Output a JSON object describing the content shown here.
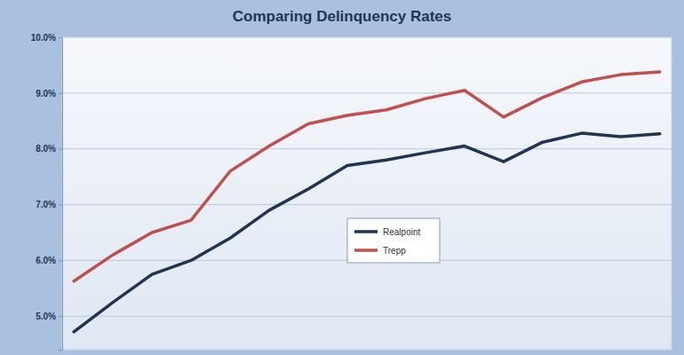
{
  "chart_data": {
    "type": "line",
    "title": "Comparing Delinquency Rates",
    "categories": [
      null,
      null,
      null,
      null,
      null,
      null,
      null,
      null,
      null,
      null,
      null,
      null,
      null,
      null,
      null,
      null
    ],
    "series": [
      {
        "name": "Realpoint",
        "color": "#1f3553",
        "values": [
          4.72,
          5.25,
          5.75,
          6.0,
          6.4,
          6.9,
          7.28,
          7.7,
          7.8,
          7.93,
          8.05,
          7.77,
          8.12,
          8.28,
          8.22,
          8.27
        ]
      },
      {
        "name": "Trepp",
        "color": "#c0504d",
        "values": [
          5.63,
          6.1,
          6.5,
          6.72,
          7.6,
          8.05,
          8.45,
          8.6,
          8.7,
          8.9,
          9.05,
          8.57,
          8.92,
          9.2,
          9.33,
          9.38
        ]
      }
    ],
    "ylim": [
      4.4,
      10.0
    ],
    "yticks": [
      {
        "value": 5.0,
        "label": "5.0%"
      },
      {
        "value": 6.0,
        "label": "6.0%"
      },
      {
        "value": 7.0,
        "label": "7.0%"
      },
      {
        "value": 8.0,
        "label": "8.0%"
      },
      {
        "value": 9.0,
        "label": "9.0%"
      },
      {
        "value": 10.0,
        "label": "10.0%"
      }
    ],
    "grid": true,
    "legend": "center",
    "tick_labels": "y"
  }
}
